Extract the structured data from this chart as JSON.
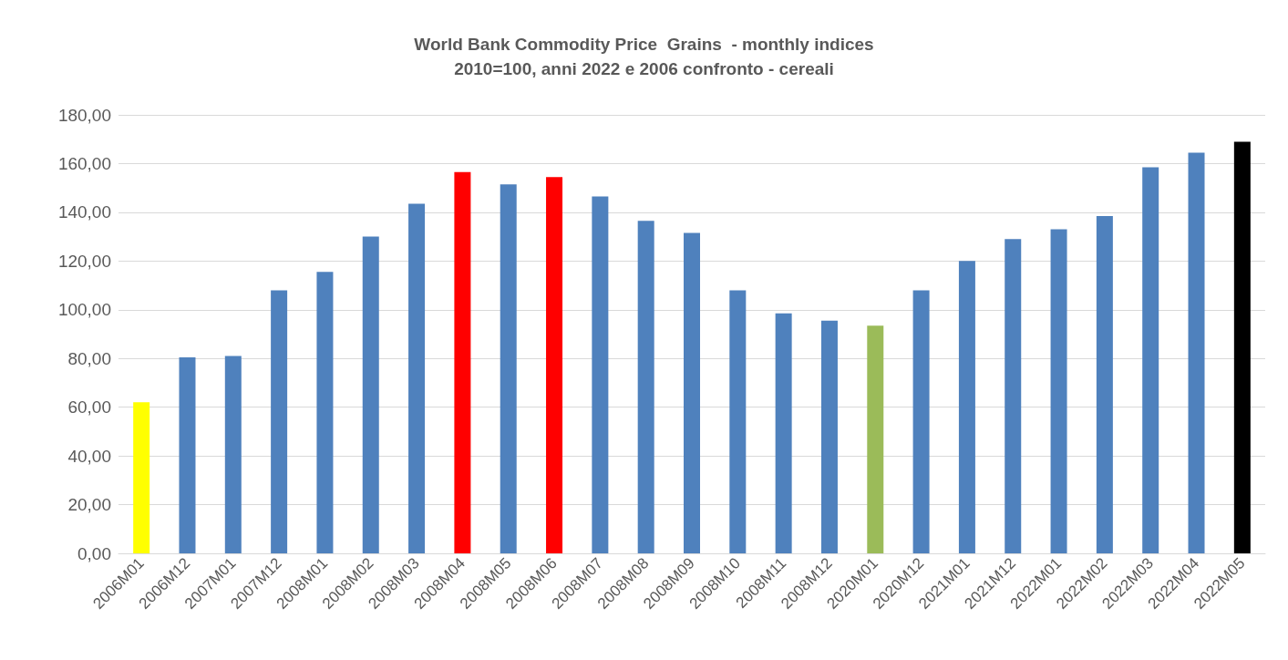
{
  "chart_data": {
    "type": "bar",
    "title": "World Bank Commodity Price  Grains  - monthly indices",
    "subtitle": "2010=100, anni 2022 e 2006 confronto - cereali",
    "categories": [
      "2006M01",
      "2006M12",
      "2007M01",
      "2007M12",
      "2008M01",
      "2008M02",
      "2008M03",
      "2008M04",
      "2008M05",
      "2008M06",
      "2008M07",
      "2008M08",
      "2008M09",
      "2008M10",
      "2008M11",
      "2008M12",
      "2020M01",
      "2020M12",
      "2021M01",
      "2021M12",
      "2022M01",
      "2022M02",
      "2022M03",
      "2022M04",
      "2022M05"
    ],
    "values": [
      62,
      80.5,
      81,
      108,
      115.5,
      130,
      143.5,
      156.5,
      151.5,
      154.5,
      146.5,
      136.5,
      131.5,
      108,
      98.5,
      95.5,
      93.5,
      108,
      120,
      129,
      133,
      138.5,
      158.5,
      164.5,
      169
    ],
    "colors": [
      "#ffff00",
      "#4f81bd",
      "#4f81bd",
      "#4f81bd",
      "#4f81bd",
      "#4f81bd",
      "#4f81bd",
      "#ff0000",
      "#4f81bd",
      "#ff0000",
      "#4f81bd",
      "#4f81bd",
      "#4f81bd",
      "#4f81bd",
      "#4f81bd",
      "#4f81bd",
      "#9bbb59",
      "#4f81bd",
      "#4f81bd",
      "#4f81bd",
      "#4f81bd",
      "#4f81bd",
      "#4f81bd",
      "#4f81bd",
      "#000000"
    ],
    "ylim": [
      0,
      180
    ],
    "yticks": [
      {
        "value": 0,
        "label": "0,00"
      },
      {
        "value": 20,
        "label": "20,00"
      },
      {
        "value": 40,
        "label": "40,00"
      },
      {
        "value": 60,
        "label": "60,00"
      },
      {
        "value": 80,
        "label": "80,00"
      },
      {
        "value": 100,
        "label": "100,00"
      },
      {
        "value": 120,
        "label": "120,00"
      },
      {
        "value": 140,
        "label": "140,00"
      },
      {
        "value": 160,
        "label": "160,00"
      },
      {
        "value": 180,
        "label": "180,00"
      }
    ],
    "grid": "y"
  }
}
